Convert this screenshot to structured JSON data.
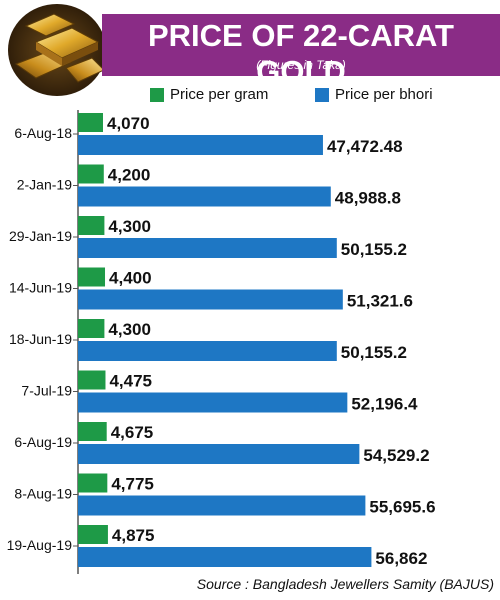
{
  "header": {
    "title": "PRICE OF 22-CARAT GOLD",
    "subtitle": "(Figures in Taka)"
  },
  "legend": {
    "items": [
      {
        "label": "Price per gram",
        "color": "#1e9a47"
      },
      {
        "label": "Price per bhori",
        "color": "#1e77c4"
      }
    ]
  },
  "chart_data": {
    "type": "bar",
    "orientation": "horizontal",
    "title": "PRICE OF 22-CARAT GOLD",
    "subtitle": "(Figures in Taka)",
    "categories": [
      "6-Aug-18",
      "2-Jan-19",
      "29-Jan-19",
      "14-Jun-19",
      "18-Jun-19",
      "7-Jul-19",
      "6-Aug-19",
      "8-Aug-19",
      "19-Aug-19"
    ],
    "series": [
      {
        "name": "Price per gram",
        "color": "#1e9a47",
        "values": [
          4070,
          4200,
          4300,
          4400,
          4300,
          4475,
          4675,
          4775,
          4875
        ],
        "labels": [
          "4,070",
          "4,200",
          "4,300",
          "4,400",
          "4,300",
          "4,475",
          "4,675",
          "4,775",
          "4,875"
        ]
      },
      {
        "name": "Price per bhori",
        "color": "#1e77c4",
        "values": [
          47472.48,
          48988.8,
          50155.2,
          51321.6,
          50155.2,
          52196.4,
          54529.2,
          55695.6,
          56862
        ],
        "labels": [
          "47,472.48",
          "48,988.8",
          "50,155.2",
          "51,321.6",
          "50,155.2",
          "52,196.4",
          "54,529.2",
          "55,695.6",
          "56,862"
        ]
      }
    ],
    "axis": "no value axis shown",
    "grid": false,
    "legend_position": "top"
  },
  "footer": {
    "source": "Source : Bangladesh Jewellers Samity (BAJUS)"
  }
}
